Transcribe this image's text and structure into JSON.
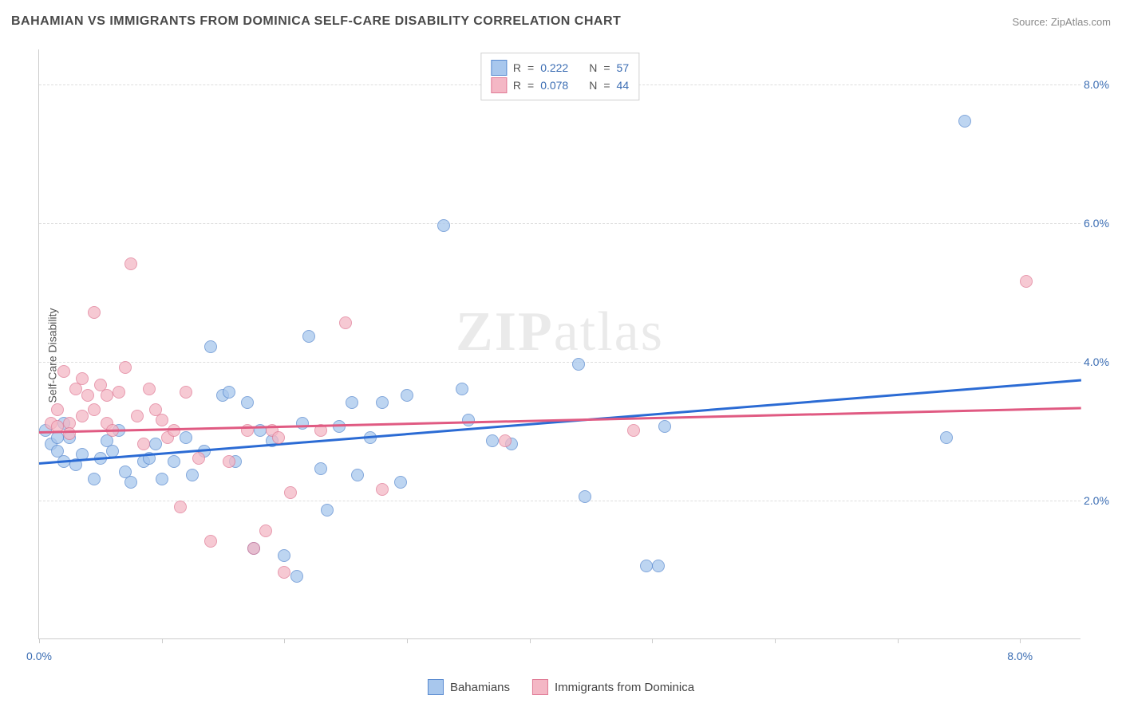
{
  "header": {
    "title": "BAHAMIAN VS IMMIGRANTS FROM DOMINICA SELF-CARE DISABILITY CORRELATION CHART",
    "source": "Source: ZipAtlas.com"
  },
  "y_axis_label": "Self-Care Disability",
  "watermark": {
    "bold": "ZIP",
    "rest": "atlas"
  },
  "chart": {
    "type": "scatter",
    "xlim": [
      0,
      8.5
    ],
    "ylim": [
      0,
      8.5
    ],
    "x_ticks": [
      0,
      1,
      2,
      3,
      4,
      5,
      6,
      7,
      8
    ],
    "x_tick_labels": {
      "0": "0.0%",
      "8": "8.0%"
    },
    "y_ticks": [
      2,
      4,
      6,
      8
    ],
    "y_tick_labels": {
      "2": "2.0%",
      "4": "4.0%",
      "6": "6.0%",
      "8": "8.0%"
    },
    "grid_color": "#dddddd",
    "axis_color": "#cccccc",
    "background": "#ffffff",
    "marker_radius": 8,
    "series": [
      {
        "key": "bahamians",
        "label": "Bahamians",
        "fill": "#a8c7ed",
        "stroke": "#5a8bd0",
        "trend_color": "#2b6bd4",
        "r_value": "0.222",
        "n_value": "57",
        "trend": {
          "x0": 0,
          "y0": 2.55,
          "x1": 8.5,
          "y1": 3.75
        },
        "points": [
          [
            0.05,
            3.0
          ],
          [
            0.1,
            2.8
          ],
          [
            0.15,
            2.9
          ],
          [
            0.15,
            2.7
          ],
          [
            0.2,
            3.1
          ],
          [
            0.2,
            2.55
          ],
          [
            0.25,
            2.9
          ],
          [
            0.3,
            2.5
          ],
          [
            0.35,
            2.65
          ],
          [
            0.45,
            2.3
          ],
          [
            0.5,
            2.6
          ],
          [
            0.55,
            2.85
          ],
          [
            0.6,
            2.7
          ],
          [
            0.65,
            3.0
          ],
          [
            0.7,
            2.4
          ],
          [
            0.75,
            2.25
          ],
          [
            0.85,
            2.55
          ],
          [
            0.9,
            2.6
          ],
          [
            0.95,
            2.8
          ],
          [
            1.0,
            2.3
          ],
          [
            1.1,
            2.55
          ],
          [
            1.2,
            2.9
          ],
          [
            1.25,
            2.35
          ],
          [
            1.35,
            2.7
          ],
          [
            1.4,
            4.2
          ],
          [
            1.5,
            3.5
          ],
          [
            1.6,
            2.55
          ],
          [
            1.7,
            3.4
          ],
          [
            1.75,
            1.3
          ],
          [
            1.8,
            3.0
          ],
          [
            1.9,
            2.85
          ],
          [
            2.0,
            1.2
          ],
          [
            2.1,
            0.9
          ],
          [
            2.15,
            3.1
          ],
          [
            2.2,
            4.35
          ],
          [
            2.3,
            2.45
          ],
          [
            2.35,
            1.85
          ],
          [
            2.45,
            3.05
          ],
          [
            2.55,
            3.4
          ],
          [
            2.6,
            2.35
          ],
          [
            2.7,
            2.9
          ],
          [
            2.8,
            3.4
          ],
          [
            2.95,
            2.25
          ],
          [
            3.0,
            3.5
          ],
          [
            3.3,
            5.95
          ],
          [
            3.45,
            3.6
          ],
          [
            3.5,
            3.15
          ],
          [
            3.7,
            2.85
          ],
          [
            3.85,
            2.8
          ],
          [
            4.4,
            3.95
          ],
          [
            4.45,
            2.05
          ],
          [
            4.95,
            1.05
          ],
          [
            5.05,
            1.05
          ],
          [
            5.1,
            3.05
          ],
          [
            7.4,
            2.9
          ],
          [
            7.55,
            7.45
          ],
          [
            1.55,
            3.55
          ]
        ]
      },
      {
        "key": "dominica",
        "label": "Immigrants from Dominica",
        "fill": "#f4b7c5",
        "stroke": "#e07a95",
        "trend_color": "#e05a82",
        "r_value": "0.078",
        "n_value": "44",
        "trend": {
          "x0": 0,
          "y0": 3.0,
          "x1": 8.5,
          "y1": 3.35
        },
        "points": [
          [
            0.1,
            3.1
          ],
          [
            0.15,
            3.3
          ],
          [
            0.15,
            3.05
          ],
          [
            0.2,
            3.85
          ],
          [
            0.25,
            3.1
          ],
          [
            0.25,
            2.95
          ],
          [
            0.3,
            3.6
          ],
          [
            0.35,
            3.2
          ],
          [
            0.35,
            3.75
          ],
          [
            0.4,
            3.5
          ],
          [
            0.45,
            3.3
          ],
          [
            0.45,
            4.7
          ],
          [
            0.5,
            3.65
          ],
          [
            0.55,
            3.5
          ],
          [
            0.55,
            3.1
          ],
          [
            0.6,
            3.0
          ],
          [
            0.65,
            3.55
          ],
          [
            0.7,
            3.9
          ],
          [
            0.75,
            5.4
          ],
          [
            0.8,
            3.2
          ],
          [
            0.85,
            2.8
          ],
          [
            0.9,
            3.6
          ],
          [
            0.95,
            3.3
          ],
          [
            1.0,
            3.15
          ],
          [
            1.05,
            2.9
          ],
          [
            1.1,
            3.0
          ],
          [
            1.15,
            1.9
          ],
          [
            1.2,
            3.55
          ],
          [
            1.3,
            2.6
          ],
          [
            1.4,
            1.4
          ],
          [
            1.55,
            2.55
          ],
          [
            1.7,
            3.0
          ],
          [
            1.75,
            1.3
          ],
          [
            1.85,
            1.55
          ],
          [
            1.9,
            3.0
          ],
          [
            1.95,
            2.9
          ],
          [
            2.0,
            0.95
          ],
          [
            2.05,
            2.1
          ],
          [
            2.3,
            3.0
          ],
          [
            2.5,
            4.55
          ],
          [
            2.8,
            2.15
          ],
          [
            3.8,
            2.85
          ],
          [
            4.85,
            3.0
          ],
          [
            8.05,
            5.15
          ]
        ]
      }
    ]
  },
  "legend_top": {
    "r_label": "R",
    "n_label": "N",
    "eq": "="
  }
}
